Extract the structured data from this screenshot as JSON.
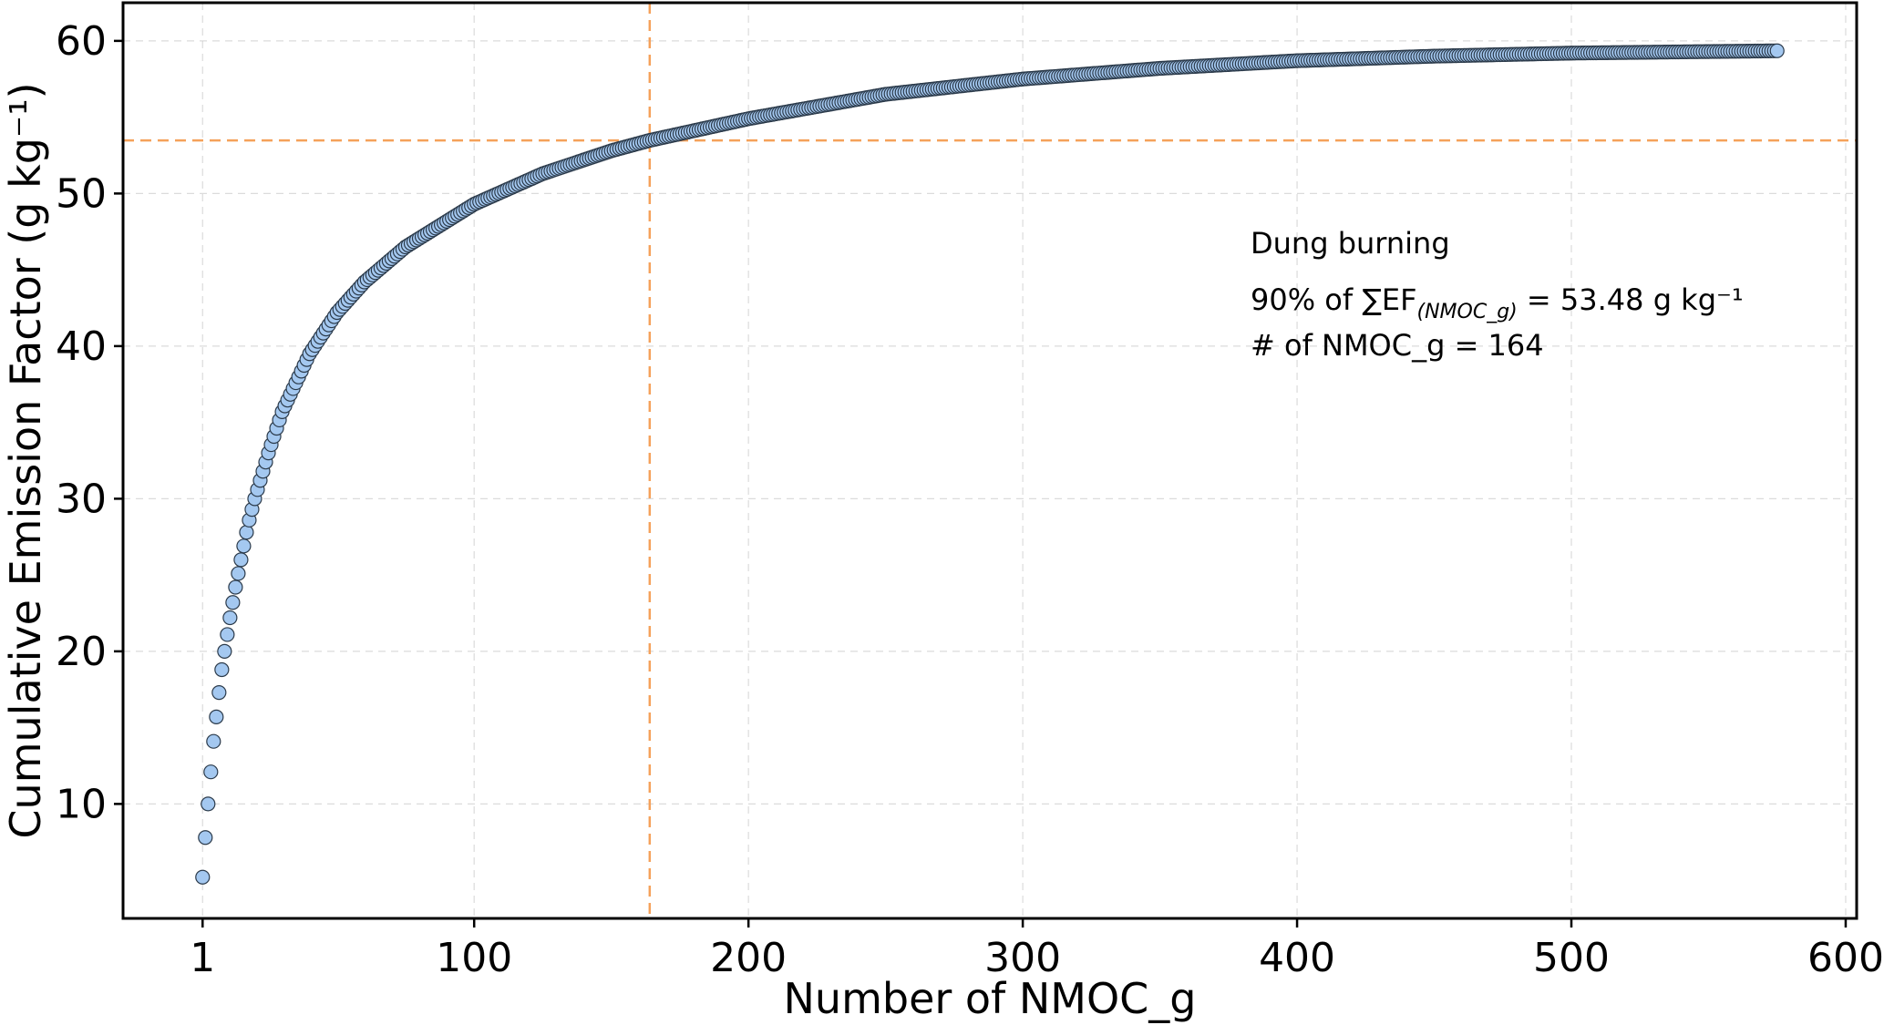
{
  "chart_data": {
    "type": "scatter",
    "xlabel": "Number of NMOC_g",
    "ylabel": "Cumulative Emission Factor (g kg⁻¹)",
    "xlim": [
      -28,
      604
    ],
    "ylim": [
      2.5,
      62.5
    ],
    "x_ticks": [
      1,
      100,
      200,
      300,
      400,
      500,
      600
    ],
    "y_ticks": [
      10,
      20,
      30,
      40,
      50,
      60
    ],
    "grid": true,
    "n_points": 575,
    "x_range": [
      1,
      575
    ],
    "anchor_points": [
      {
        "x": 1,
        "y": 5.2
      },
      {
        "x": 2,
        "y": 7.8
      },
      {
        "x": 3,
        "y": 10.0
      },
      {
        "x": 4,
        "y": 12.1
      },
      {
        "x": 5,
        "y": 14.1
      },
      {
        "x": 6,
        "y": 15.7
      },
      {
        "x": 7,
        "y": 17.3
      },
      {
        "x": 8,
        "y": 18.8
      },
      {
        "x": 9,
        "y": 20.0
      },
      {
        "x": 10,
        "y": 21.1
      },
      {
        "x": 11,
        "y": 22.2
      },
      {
        "x": 12,
        "y": 23.2
      },
      {
        "x": 13,
        "y": 24.2
      },
      {
        "x": 14,
        "y": 25.1
      },
      {
        "x": 15,
        "y": 26.0
      },
      {
        "x": 16,
        "y": 26.9
      },
      {
        "x": 17,
        "y": 27.8
      },
      {
        "x": 18,
        "y": 28.6
      },
      {
        "x": 20,
        "y": 30.0
      },
      {
        "x": 25,
        "y": 33.0
      },
      {
        "x": 30,
        "y": 35.7
      },
      {
        "x": 40,
        "y": 39.5
      },
      {
        "x": 50,
        "y": 42.2
      },
      {
        "x": 60,
        "y": 44.2
      },
      {
        "x": 75,
        "y": 46.5
      },
      {
        "x": 100,
        "y": 49.3
      },
      {
        "x": 125,
        "y": 51.3
      },
      {
        "x": 150,
        "y": 52.8
      },
      {
        "x": 164,
        "y": 53.48
      },
      {
        "x": 200,
        "y": 54.9
      },
      {
        "x": 250,
        "y": 56.5
      },
      {
        "x": 300,
        "y": 57.5
      },
      {
        "x": 350,
        "y": 58.2
      },
      {
        "x": 400,
        "y": 58.7
      },
      {
        "x": 450,
        "y": 59.0
      },
      {
        "x": 500,
        "y": 59.2
      },
      {
        "x": 575,
        "y": 59.35
      }
    ],
    "marker_fill": "#a4c8f0",
    "marker_edge": "#2b3a4a",
    "reference_lines": {
      "vertical_x": 164,
      "horizontal_y": 53.48,
      "color": "#f5a15a"
    },
    "annotation": {
      "line1": "Dung burning",
      "line2_prefix": "90% of ∑EF",
      "line2_sub": "(NMOC_g)",
      "line2_suffix": " = 53.48 g kg⁻¹",
      "line3": "# of NMOC_g = 164"
    }
  }
}
